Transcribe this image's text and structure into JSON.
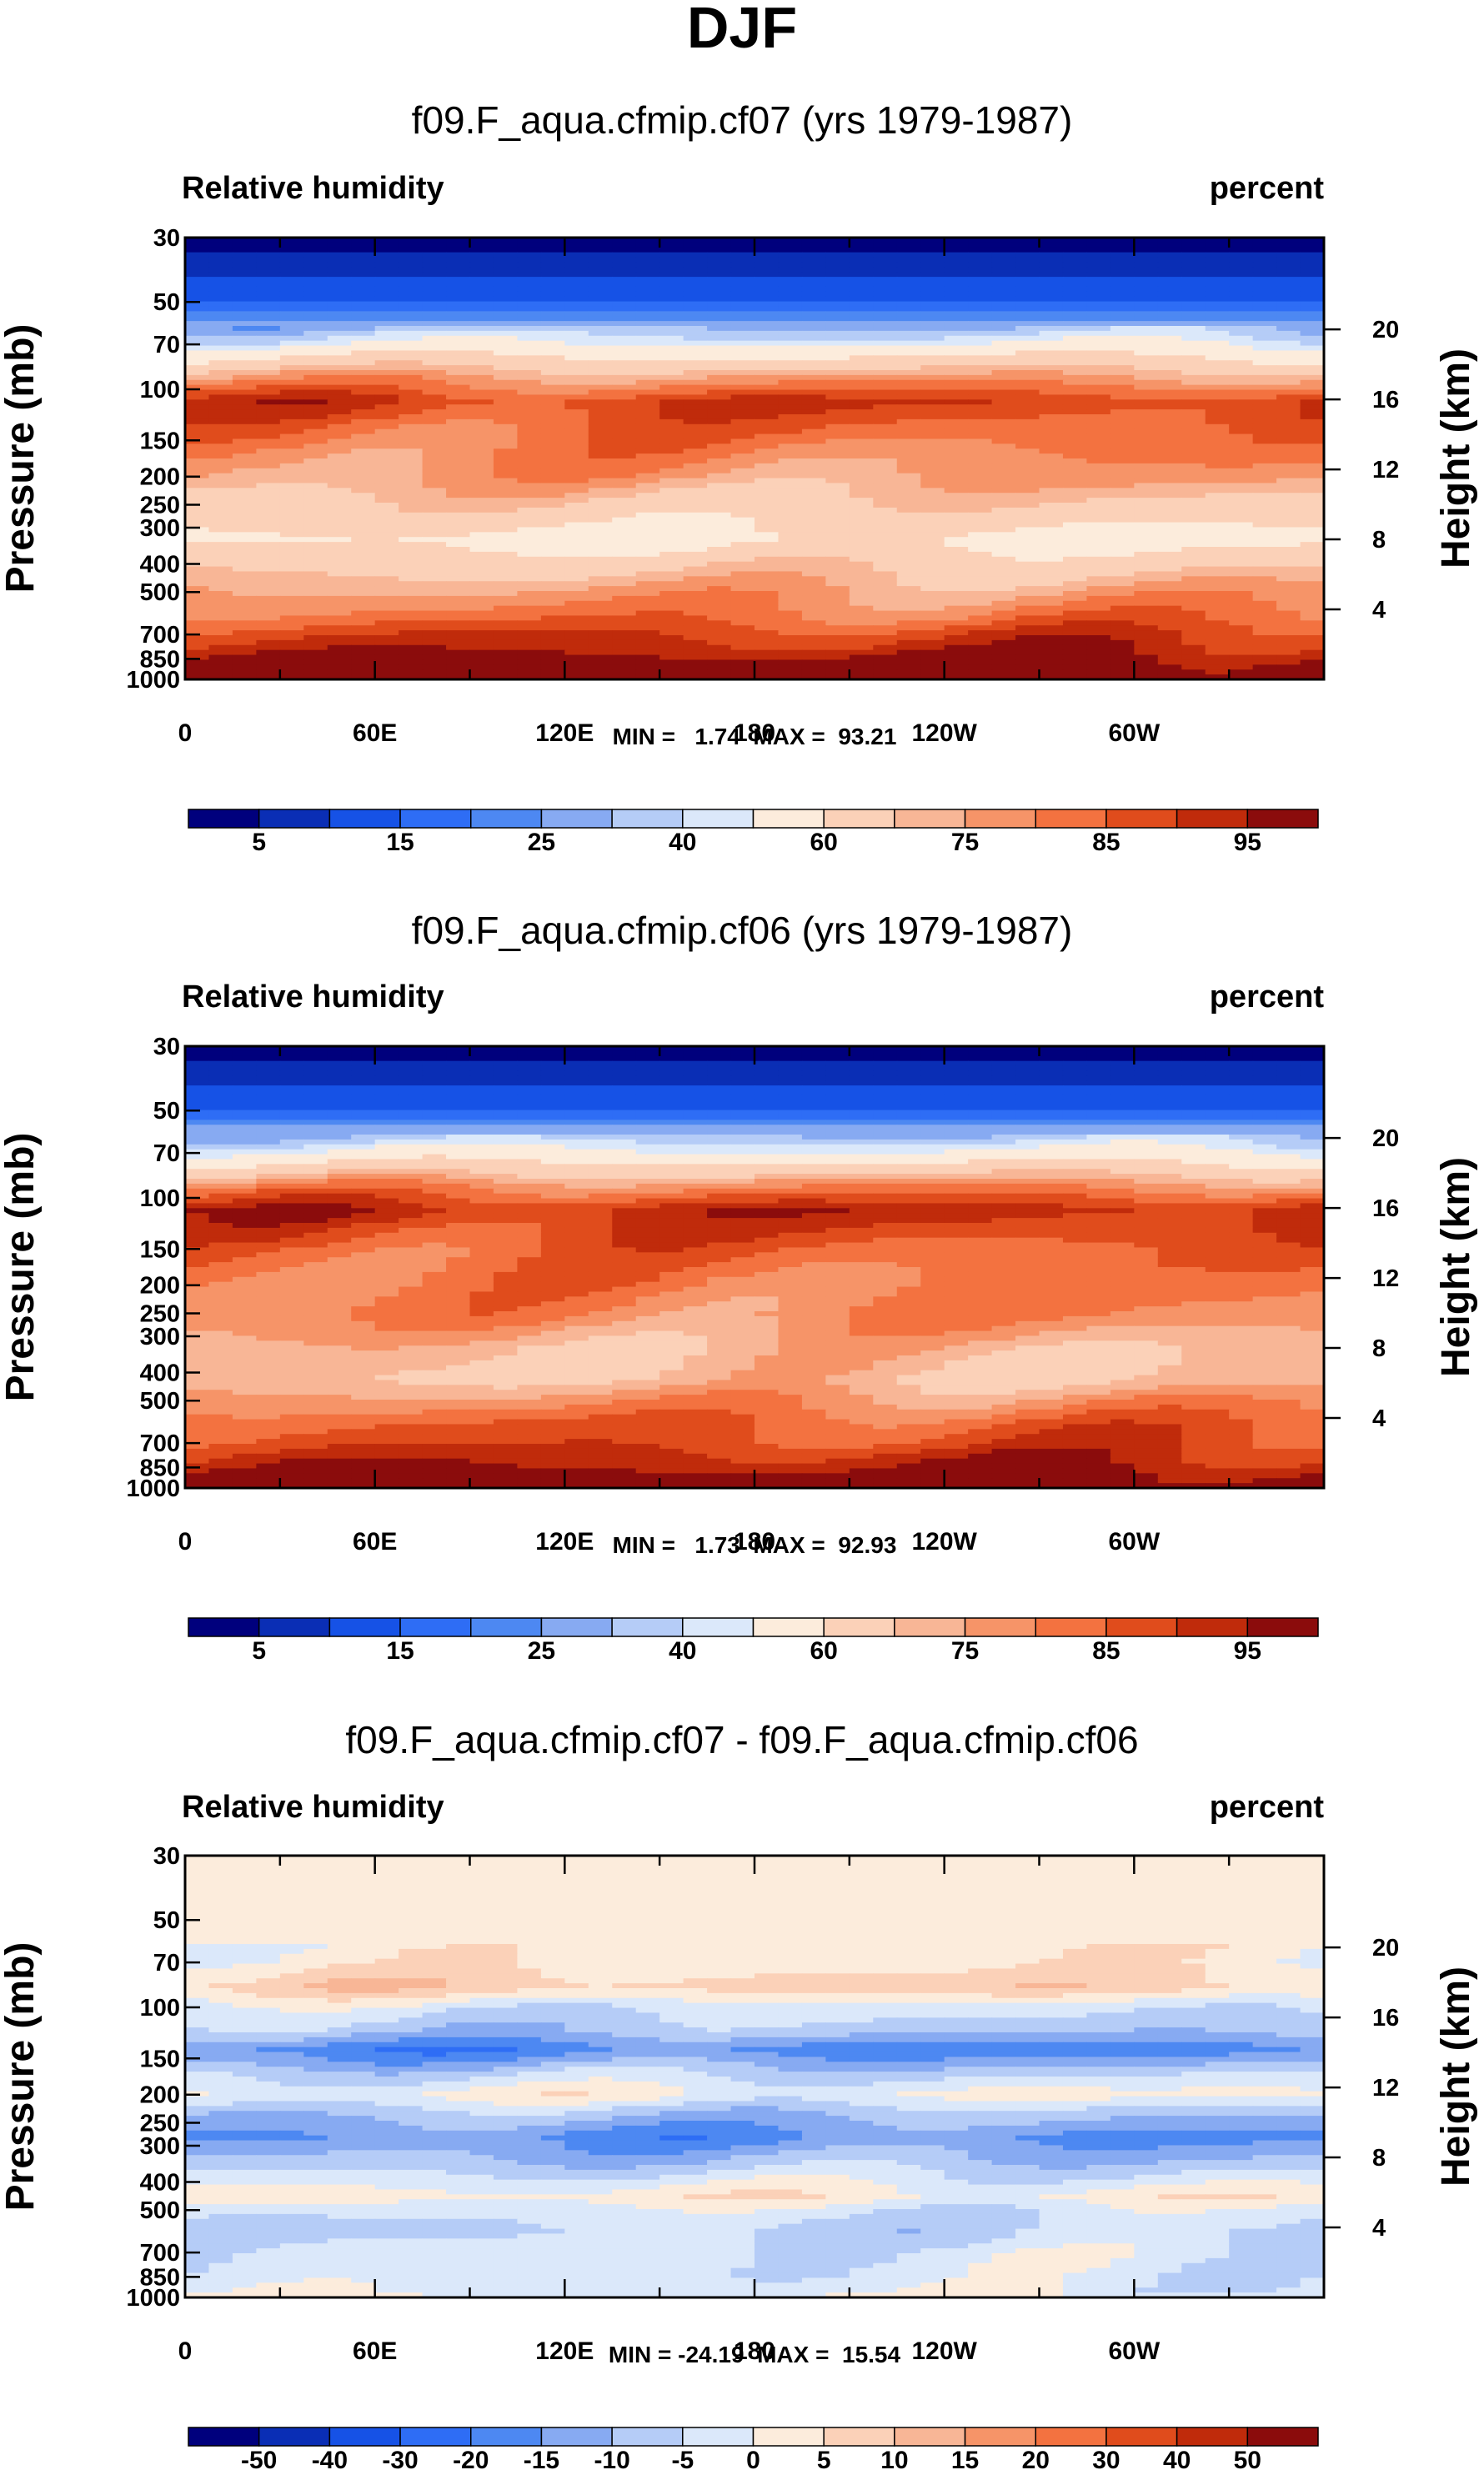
{
  "figure_title": "DJF",
  "colors": {
    "abs_scale": [
      "#00007d",
      "#0a2eb5",
      "#1652e6",
      "#2e6df5",
      "#4d88f2",
      "#87aaf2",
      "#b5ccf7",
      "#dbe8fa",
      "#fcecdc",
      "#fbd1b8",
      "#f8b696",
      "#f69468",
      "#f37240",
      "#e04c1c",
      "#c02b0b",
      "#8b0c0c"
    ],
    "diff_scale": [
      "#00007d",
      "#0a2eb5",
      "#1652e6",
      "#2e6df5",
      "#4d88f2",
      "#87aaf2",
      "#b5ccf7",
      "#dbe8fa",
      "#fcecdc",
      "#fbd1b8",
      "#f8b696",
      "#f69468",
      "#f37240",
      "#e04c1c",
      "#c02b0b",
      "#8b0c0c"
    ]
  },
  "chart_data": [
    {
      "type": "heatmap",
      "title": "f09.F_aqua.cfmip.cf07 (yrs 1979-1987)",
      "variable_label": "Relative humidity",
      "units_label": "percent",
      "ylabel": "Pressure (mb)",
      "y2label": "Height (km)",
      "x_ticks": [
        "0",
        "60E",
        "120E",
        "180",
        "120W",
        "60W"
      ],
      "x_values": [
        0,
        60,
        120,
        180,
        240,
        300
      ],
      "xlim": [
        0,
        360
      ],
      "y_ticks": [
        "30",
        "50",
        "70",
        "100",
        "150",
        "200",
        "250",
        "300",
        "400",
        "500",
        "700",
        "850",
        "1000"
      ],
      "y_values": [
        30,
        50,
        70,
        100,
        150,
        200,
        250,
        300,
        400,
        500,
        700,
        850,
        1000
      ],
      "ylim": [
        1000,
        30
      ],
      "y_scale": "log",
      "y2_ticks": [
        "20",
        "16",
        "12",
        "8",
        "4"
      ],
      "y2_values": [
        20,
        16,
        12,
        8,
        4
      ],
      "stats_label": "MIN =   1.74  MAX =  93.21",
      "min": 1.74,
      "max": 93.21,
      "colorbar_labels": [
        "5",
        "15",
        "25",
        "40",
        "60",
        "75",
        "85",
        "95"
      ],
      "colorbar_levels": [
        5,
        10,
        15,
        20,
        25,
        30,
        35,
        40,
        50,
        60,
        65,
        70,
        75,
        80,
        85,
        90,
        95
      ],
      "profile": [
        {
          "p": 1000,
          "v": 92
        },
        {
          "p": 900,
          "v": 90
        },
        {
          "p": 850,
          "v": 87
        },
        {
          "p": 780,
          "v": 83
        },
        {
          "p": 700,
          "v": 79
        },
        {
          "p": 600,
          "v": 72
        },
        {
          "p": 500,
          "v": 66
        },
        {
          "p": 400,
          "v": 57
        },
        {
          "p": 330,
          "v": 47
        },
        {
          "p": 270,
          "v": 55
        },
        {
          "p": 200,
          "v": 66
        },
        {
          "p": 150,
          "v": 72
        },
        {
          "p": 110,
          "v": 80
        },
        {
          "p": 90,
          "v": 65
        },
        {
          "p": 70,
          "v": 40
        },
        {
          "p": 50,
          "v": 15
        },
        {
          "p": 30,
          "v": 2
        }
      ]
    },
    {
      "type": "heatmap",
      "title": "f09.F_aqua.cfmip.cf06 (yrs 1979-1987)",
      "variable_label": "Relative humidity",
      "units_label": "percent",
      "ylabel": "Pressure (mb)",
      "y2label": "Height (km)",
      "x_ticks": [
        "0",
        "60E",
        "120E",
        "180",
        "120W",
        "60W"
      ],
      "x_values": [
        0,
        60,
        120,
        180,
        240,
        300
      ],
      "xlim": [
        0,
        360
      ],
      "y_ticks": [
        "30",
        "50",
        "70",
        "100",
        "150",
        "200",
        "250",
        "300",
        "400",
        "500",
        "700",
        "850",
        "1000"
      ],
      "y_values": [
        30,
        50,
        70,
        100,
        150,
        200,
        250,
        300,
        400,
        500,
        700,
        850,
        1000
      ],
      "ylim": [
        1000,
        30
      ],
      "y_scale": "log",
      "y2_ticks": [
        "20",
        "16",
        "12",
        "8",
        "4"
      ],
      "y2_values": [
        20,
        16,
        12,
        8,
        4
      ],
      "stats_label": "MIN =   1.73  MAX =  92.93",
      "min": 1.73,
      "max": 92.93,
      "colorbar_labels": [
        "5",
        "15",
        "25",
        "40",
        "60",
        "75",
        "85",
        "95"
      ],
      "colorbar_levels": [
        5,
        10,
        15,
        20,
        25,
        30,
        35,
        40,
        50,
        60,
        65,
        70,
        75,
        80,
        85,
        90,
        95
      ],
      "profile": [
        {
          "p": 1000,
          "v": 92
        },
        {
          "p": 900,
          "v": 88
        },
        {
          "p": 850,
          "v": 85
        },
        {
          "p": 780,
          "v": 82
        },
        {
          "p": 700,
          "v": 78
        },
        {
          "p": 600,
          "v": 75
        },
        {
          "p": 500,
          "v": 68
        },
        {
          "p": 420,
          "v": 60
        },
        {
          "p": 330,
          "v": 62
        },
        {
          "p": 250,
          "v": 70
        },
        {
          "p": 200,
          "v": 71
        },
        {
          "p": 150,
          "v": 75
        },
        {
          "p": 110,
          "v": 83
        },
        {
          "p": 90,
          "v": 68
        },
        {
          "p": 70,
          "v": 42
        },
        {
          "p": 50,
          "v": 15
        },
        {
          "p": 30,
          "v": 2
        }
      ]
    },
    {
      "type": "heatmap",
      "title": "f09.F_aqua.cfmip.cf07 - f09.F_aqua.cfmip.cf06",
      "variable_label": "Relative humidity",
      "units_label": "percent",
      "ylabel": "Pressure (mb)",
      "y2label": "Height (km)",
      "x_ticks": [
        "0",
        "60E",
        "120E",
        "180",
        "120W",
        "60W"
      ],
      "x_values": [
        0,
        60,
        120,
        180,
        240,
        300
      ],
      "xlim": [
        0,
        360
      ],
      "y_ticks": [
        "30",
        "50",
        "70",
        "100",
        "150",
        "200",
        "250",
        "300",
        "400",
        "500",
        "700",
        "850",
        "1000"
      ],
      "y_values": [
        30,
        50,
        70,
        100,
        150,
        200,
        250,
        300,
        400,
        500,
        700,
        850,
        1000
      ],
      "ylim": [
        1000,
        30
      ],
      "y_scale": "log",
      "y2_ticks": [
        "20",
        "16",
        "12",
        "8",
        "4"
      ],
      "y2_values": [
        20,
        16,
        12,
        8,
        4
      ],
      "stats_label": "MIN = -24.19  MAX =  15.54",
      "min": -24.19,
      "max": 15.54,
      "colorbar_labels": [
        "-50",
        "-40",
        "-30",
        "-20",
        "-15",
        "-10",
        "-5",
        "0",
        "5",
        "10",
        "15",
        "20",
        "30",
        "40",
        "50"
      ],
      "colorbar_levels": [
        -50,
        -40,
        -30,
        -20,
        -15,
        -10,
        -5,
        0,
        5,
        10,
        15,
        20,
        30,
        40,
        50
      ],
      "profile": [
        {
          "p": 1000,
          "v": 1
        },
        {
          "p": 950,
          "v": -2
        },
        {
          "p": 850,
          "v": -3
        },
        {
          "p": 700,
          "v": -3
        },
        {
          "p": 600,
          "v": -6
        },
        {
          "p": 500,
          "v": -3
        },
        {
          "p": 450,
          "v": 3
        },
        {
          "p": 380,
          "v": -4
        },
        {
          "p": 330,
          "v": -10
        },
        {
          "p": 280,
          "v": -16
        },
        {
          "p": 230,
          "v": -8
        },
        {
          "p": 200,
          "v": 1
        },
        {
          "p": 170,
          "v": -6
        },
        {
          "p": 140,
          "v": -18
        },
        {
          "p": 120,
          "v": -8
        },
        {
          "p": 100,
          "v": -3
        },
        {
          "p": 85,
          "v": 8
        },
        {
          "p": 70,
          "v": 3
        },
        {
          "p": 30,
          "v": 0
        }
      ]
    }
  ]
}
